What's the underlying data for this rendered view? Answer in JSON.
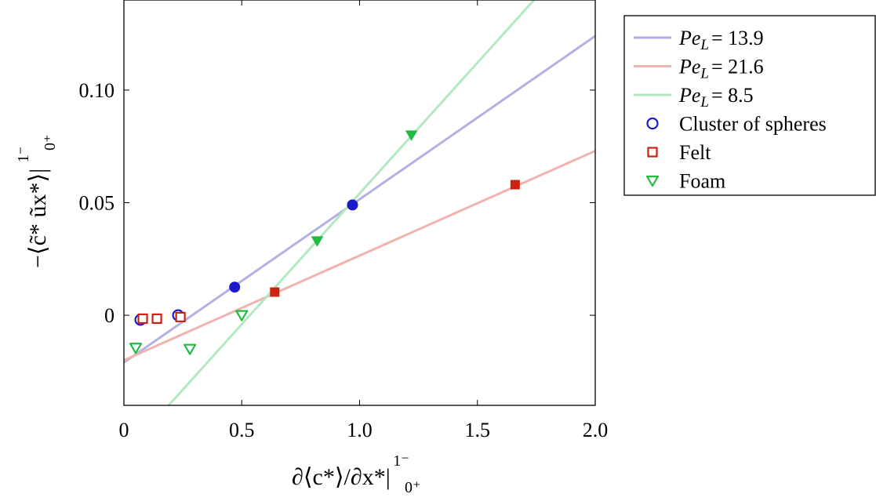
{
  "chart_data": {
    "type": "scatter",
    "xlabel": "∂⟨c*⟩/∂x*|",
    "xlabel_sup": "1⁻",
    "xlabel_sub": "0⁺",
    "ylabel": "−⟨c̃* ũx*⟩|",
    "ylabel_sup": "1⁻",
    "ylabel_sub": "0⁺",
    "xlim": [
      0,
      2.0
    ],
    "ylim": [
      -0.04,
      0.14
    ],
    "x_ticks": [
      {
        "value": 0,
        "label": "0"
      },
      {
        "value": 0.5,
        "label": "0.5"
      },
      {
        "value": 1.0,
        "label": "1.0"
      },
      {
        "value": 1.5,
        "label": "1.5"
      },
      {
        "value": 2.0,
        "label": "2.0"
      }
    ],
    "y_ticks": [
      {
        "value": 0,
        "label": "0"
      },
      {
        "value": 0.05,
        "label": "0.05"
      },
      {
        "value": 0.1,
        "label": "0.10"
      }
    ],
    "grid": false,
    "legend_position": "outside-right-top",
    "lines": [
      {
        "name": "Pe",
        "sub": "L",
        "value_text": "= 13.9",
        "color": "#b4b0e4",
        "x": [
          0,
          2.0
        ],
        "y": [
          -0.021,
          0.124
        ]
      },
      {
        "name": "Pe",
        "sub": "L",
        "value_text": "= 21.6",
        "color": "#efb4b0",
        "x": [
          0,
          2.0
        ],
        "y": [
          -0.02,
          0.073
        ]
      },
      {
        "name": "Pe",
        "sub": "L",
        "value_text": "= 8.5",
        "color": "#b4e8c0",
        "x": [
          0.19,
          1.74
        ],
        "y": [
          -0.04,
          0.14
        ]
      }
    ],
    "series": [
      {
        "name": "Cluster of spheres",
        "marker": "circle",
        "color": "#1a1acc",
        "points": [
          {
            "x": 0.07,
            "y": -0.002,
            "filled": false
          },
          {
            "x": 0.23,
            "y": 0.0,
            "filled": false
          },
          {
            "x": 0.47,
            "y": 0.0125,
            "filled": true
          },
          {
            "x": 0.97,
            "y": 0.049,
            "filled": true
          }
        ]
      },
      {
        "name": "Felt",
        "marker": "square",
        "color": "#cc2211",
        "points": [
          {
            "x": 0.08,
            "y": -0.0015,
            "filled": false
          },
          {
            "x": 0.14,
            "y": -0.0015,
            "filled": false
          },
          {
            "x": 0.24,
            "y": -0.0008,
            "filled": false
          },
          {
            "x": 0.64,
            "y": 0.0103,
            "filled": true
          },
          {
            "x": 1.66,
            "y": 0.058,
            "filled": true
          }
        ]
      },
      {
        "name": "Foam",
        "marker": "triangle-down",
        "color": "#22bb44",
        "points": [
          {
            "x": 0.05,
            "y": -0.0145,
            "filled": false
          },
          {
            "x": 0.28,
            "y": -0.015,
            "filled": false
          },
          {
            "x": 0.5,
            "y": 0.0,
            "filled": false
          },
          {
            "x": 0.82,
            "y": 0.033,
            "filled": true
          },
          {
            "x": 1.22,
            "y": 0.08,
            "filled": true
          }
        ]
      }
    ]
  }
}
